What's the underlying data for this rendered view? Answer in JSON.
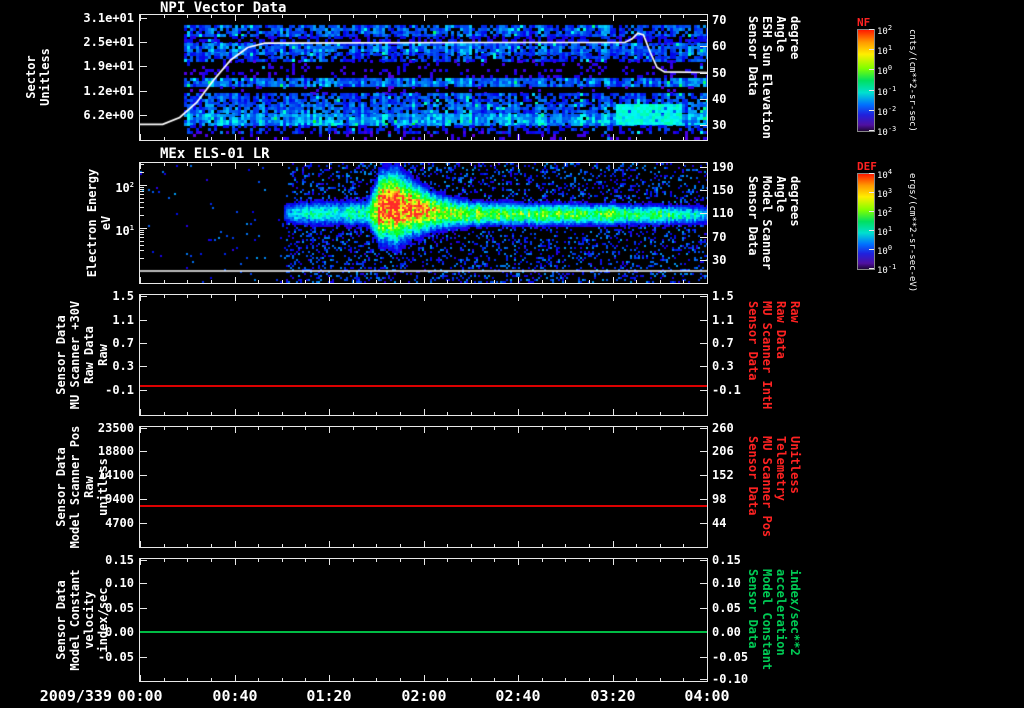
{
  "meta": {
    "background": "#000000",
    "foreground": "#ffffff",
    "red_accent": "#ff2222",
    "green_accent": "#00cc55"
  },
  "time_axis": {
    "date_label": "2009/339",
    "tick_labels": [
      "00:00",
      "00:40",
      "01:20",
      "02:00",
      "02:40",
      "03:20",
      "04:00"
    ]
  },
  "colorbars": [
    {
      "name": "NF",
      "name_color": "#ff2222",
      "unit": "cnts/(cm**2-sr-sec)",
      "ticks": [
        "10^2",
        "10^1",
        "10^0",
        "10^-1",
        "10^-2",
        "10^-3"
      ]
    },
    {
      "name": "DEF",
      "name_color": "#ff2222",
      "unit": "ergs/(cm**2-sr-sec-eV)",
      "ticks": [
        "10^4",
        "10^3",
        "10^2",
        "10^1",
        "10^0",
        "10^-1"
      ]
    }
  ],
  "chart_data": [
    {
      "type": "heatmap",
      "title": "NPI Vector Data",
      "colorbar": "NF",
      "y_left": {
        "label_lines": [
          "Sector",
          "Unitless"
        ],
        "ticks": [
          {
            "t": "3.1e+01",
            "f": 0.02
          },
          {
            "t": "2.5e+01",
            "f": 0.215
          },
          {
            "t": "1.9e+01",
            "f": 0.41
          },
          {
            "t": "1.2e+01",
            "f": 0.605
          },
          {
            "t": "6.2e+00",
            "f": 0.8
          }
        ]
      },
      "y_right": {
        "label_lines": [
          "Sensor Data",
          "ESH Sun Elevation",
          "Angle",
          "degree"
        ],
        "color": "#ffffff",
        "ticks": [
          {
            "t": "70",
            "f": 0.04
          },
          {
            "t": "60",
            "f": 0.25
          },
          {
            "t": "50",
            "f": 0.46
          },
          {
            "t": "40",
            "f": 0.67
          },
          {
            "t": "30",
            "f": 0.88
          }
        ]
      },
      "heatmap": {
        "x_start": 0.079,
        "bands": [
          {
            "y0": 0.08,
            "y1": 0.17,
            "v": 0.2,
            "d": 0.8
          },
          {
            "y0": 0.17,
            "y1": 0.22,
            "v": 0.13,
            "d": 0.45
          },
          {
            "y0": 0.22,
            "y1": 0.3,
            "v": 0.21,
            "d": 0.85
          },
          {
            "y0": 0.3,
            "y1": 0.36,
            "v": 0.18,
            "d": 0.65
          },
          {
            "y0": 0.36,
            "y1": 0.5,
            "v": 0.1,
            "d": 0.18
          },
          {
            "y0": 0.5,
            "y1": 0.57,
            "v": 0.22,
            "d": 0.92
          },
          {
            "y0": 0.57,
            "y1": 0.62,
            "v": 0.08,
            "d": 0.08
          },
          {
            "y0": 0.62,
            "y1": 0.71,
            "v": 0.19,
            "d": 0.72
          },
          {
            "y0": 0.71,
            "y1": 0.79,
            "v": 0.21,
            "d": 0.8
          },
          {
            "y0": 0.79,
            "y1": 0.88,
            "v": 0.26,
            "d": 0.95
          },
          {
            "y0": 0.88,
            "y1": 0.93,
            "v": 0.16,
            "d": 0.4
          },
          {
            "y0": 0.93,
            "y1": 1.0,
            "v": 0.08,
            "d": 0.15
          }
        ],
        "patch": {
          "x0": 0.84,
          "x1": 0.953,
          "y0": 0.71,
          "y1": 0.86,
          "v": 0.38,
          "d": 0.95
        }
      },
      "overlay_line": {
        "color": "#ffffff",
        "points": [
          [
            0,
            0.875
          ],
          [
            0.04,
            0.875
          ],
          [
            0.07,
            0.82
          ],
          [
            0.1,
            0.7
          ],
          [
            0.13,
            0.52
          ],
          [
            0.16,
            0.36
          ],
          [
            0.19,
            0.26
          ],
          [
            0.22,
            0.225
          ],
          [
            0.6,
            0.22
          ],
          [
            0.855,
            0.22
          ],
          [
            0.868,
            0.19
          ],
          [
            0.878,
            0.145
          ],
          [
            0.888,
            0.16
          ],
          [
            0.9,
            0.3
          ],
          [
            0.912,
            0.42
          ],
          [
            0.925,
            0.455
          ],
          [
            1.0,
            0.46
          ]
        ]
      }
    },
    {
      "type": "heatmap",
      "title": "MEx ELS-01 LR",
      "colorbar": "DEF",
      "y_left": {
        "label_lines": [
          "Electron Energy",
          "eV"
        ],
        "log_minors": true,
        "ticks": [
          {
            "t": "10^2",
            "f": 0.18
          },
          {
            "t": "10^1",
            "f": 0.54
          }
        ]
      },
      "y_right": {
        "label_lines": [
          "Sensor Data",
          "Model Scanner",
          "Angle",
          "degrees"
        ],
        "color": "#ffffff",
        "ticks": [
          {
            "t": "190",
            "f": 0.03
          },
          {
            "t": "150",
            "f": 0.225
          },
          {
            "t": "110",
            "f": 0.42
          },
          {
            "t": "70",
            "f": 0.615
          },
          {
            "t": "30",
            "f": 0.81
          }
        ]
      },
      "beam": {
        "bg_start": 0.255,
        "bg_density": 0.22,
        "amp": [
          [
            0,
            0
          ],
          [
            0.25,
            0
          ],
          [
            0.255,
            0.3
          ],
          [
            0.3,
            0.38
          ],
          [
            0.35,
            0.4
          ],
          [
            0.4,
            0.45
          ],
          [
            0.412,
            0.85
          ],
          [
            0.43,
            1.0
          ],
          [
            0.49,
            1.0
          ],
          [
            0.51,
            0.82
          ],
          [
            0.53,
            0.62
          ],
          [
            0.58,
            0.66
          ],
          [
            0.63,
            0.6
          ],
          [
            0.68,
            0.55
          ],
          [
            0.73,
            0.6
          ],
          [
            0.78,
            0.55
          ],
          [
            0.83,
            0.58
          ],
          [
            0.88,
            0.52
          ],
          [
            0.93,
            0.5
          ],
          [
            0.96,
            0.4
          ],
          [
            1.0,
            0.32
          ]
        ],
        "yc": [
          [
            0,
            0.42
          ],
          [
            0.4,
            0.41
          ],
          [
            0.43,
            0.35
          ],
          [
            0.47,
            0.37
          ],
          [
            0.52,
            0.4
          ],
          [
            0.58,
            0.415
          ],
          [
            0.7,
            0.42
          ],
          [
            1.0,
            0.425
          ]
        ],
        "sy": [
          [
            0,
            0.05
          ],
          [
            0.4,
            0.07
          ],
          [
            0.42,
            0.16
          ],
          [
            0.45,
            0.18
          ],
          [
            0.48,
            0.13
          ],
          [
            0.52,
            0.09
          ],
          [
            0.56,
            0.07
          ],
          [
            0.62,
            0.06
          ],
          [
            1.0,
            0.05
          ]
        ]
      },
      "overlay_line": {
        "color": "#ffffff",
        "points": [
          [
            0,
            0.9
          ],
          [
            1,
            0.9
          ]
        ]
      }
    },
    {
      "type": "line",
      "y_left": {
        "label_lines": [
          "Sensor Data",
          "MU Scanner +30V",
          "Raw Data",
          "Raw"
        ],
        "ticks": [
          {
            "t": "1.5",
            "f": 0.01
          },
          {
            "t": "1.1",
            "f": 0.205
          },
          {
            "t": "0.7",
            "f": 0.4
          },
          {
            "t": "0.3",
            "f": 0.595
          },
          {
            "t": "-0.1",
            "f": 0.79
          }
        ]
      },
      "y_right": {
        "label_lines": [
          "Sensor Data",
          "MU Scanner IntH",
          "Raw Data",
          "Raw"
        ],
        "color": "#ff2222",
        "ticks": [
          {
            "t": "1.5",
            "f": 0.01
          },
          {
            "t": "1.1",
            "f": 0.205
          },
          {
            "t": "0.7",
            "f": 0.4
          },
          {
            "t": "0.3",
            "f": 0.595
          },
          {
            "t": "-0.1",
            "f": 0.79
          }
        ]
      },
      "series": {
        "color": "#dd0000",
        "frac": 0.755,
        "value": 0.0
      }
    },
    {
      "type": "line",
      "y_left": {
        "label_lines": [
          "Sensor Data",
          "Model Scanner Pos",
          "Raw",
          "unitless"
        ],
        "ticks": [
          {
            "t": "23500",
            "f": 0.01
          },
          {
            "t": "18800",
            "f": 0.2
          },
          {
            "t": "14100",
            "f": 0.4
          },
          {
            "t": "9400",
            "f": 0.6
          },
          {
            "t": "4700",
            "f": 0.8
          }
        ]
      },
      "y_right": {
        "label_lines": [
          "Sensor Data",
          "MU Scanner Pos",
          "Telemetry",
          "Unitless"
        ],
        "color": "#ff2222",
        "ticks": [
          {
            "t": "260",
            "f": 0.01
          },
          {
            "t": "206",
            "f": 0.2
          },
          {
            "t": "152",
            "f": 0.4
          },
          {
            "t": "98",
            "f": 0.6
          },
          {
            "t": "44",
            "f": 0.8
          }
        ]
      },
      "series": {
        "color": "#dd0000",
        "frac": 0.66,
        "value": 8000
      }
    },
    {
      "type": "line",
      "y_left": {
        "label_lines": [
          "Sensor Data",
          "Model Constant",
          "velocity",
          "index/sec"
        ],
        "ticks": [
          {
            "t": "0.15",
            "f": 0.01
          },
          {
            "t": "0.10",
            "f": 0.2
          },
          {
            "t": "0.05",
            "f": 0.4
          },
          {
            "t": "0.00",
            "f": 0.6
          },
          {
            "t": "-0.05",
            "f": 0.8
          }
        ]
      },
      "y_right": {
        "label_lines": [
          "Sensor Data",
          "Model Constant",
          "acceleration",
          "index/sec**2"
        ],
        "color": "#00cc55",
        "ticks": [
          {
            "t": "0.15",
            "f": 0.01
          },
          {
            "t": "0.10",
            "f": 0.2
          },
          {
            "t": "0.05",
            "f": 0.4
          },
          {
            "t": "0.00",
            "f": 0.6
          },
          {
            "t": "-0.05",
            "f": 0.8
          },
          {
            "t": "-0.10",
            "f": 0.985
          }
        ]
      },
      "series": {
        "color": "#00bb44",
        "frac": 0.6,
        "value": 0.0
      }
    }
  ]
}
